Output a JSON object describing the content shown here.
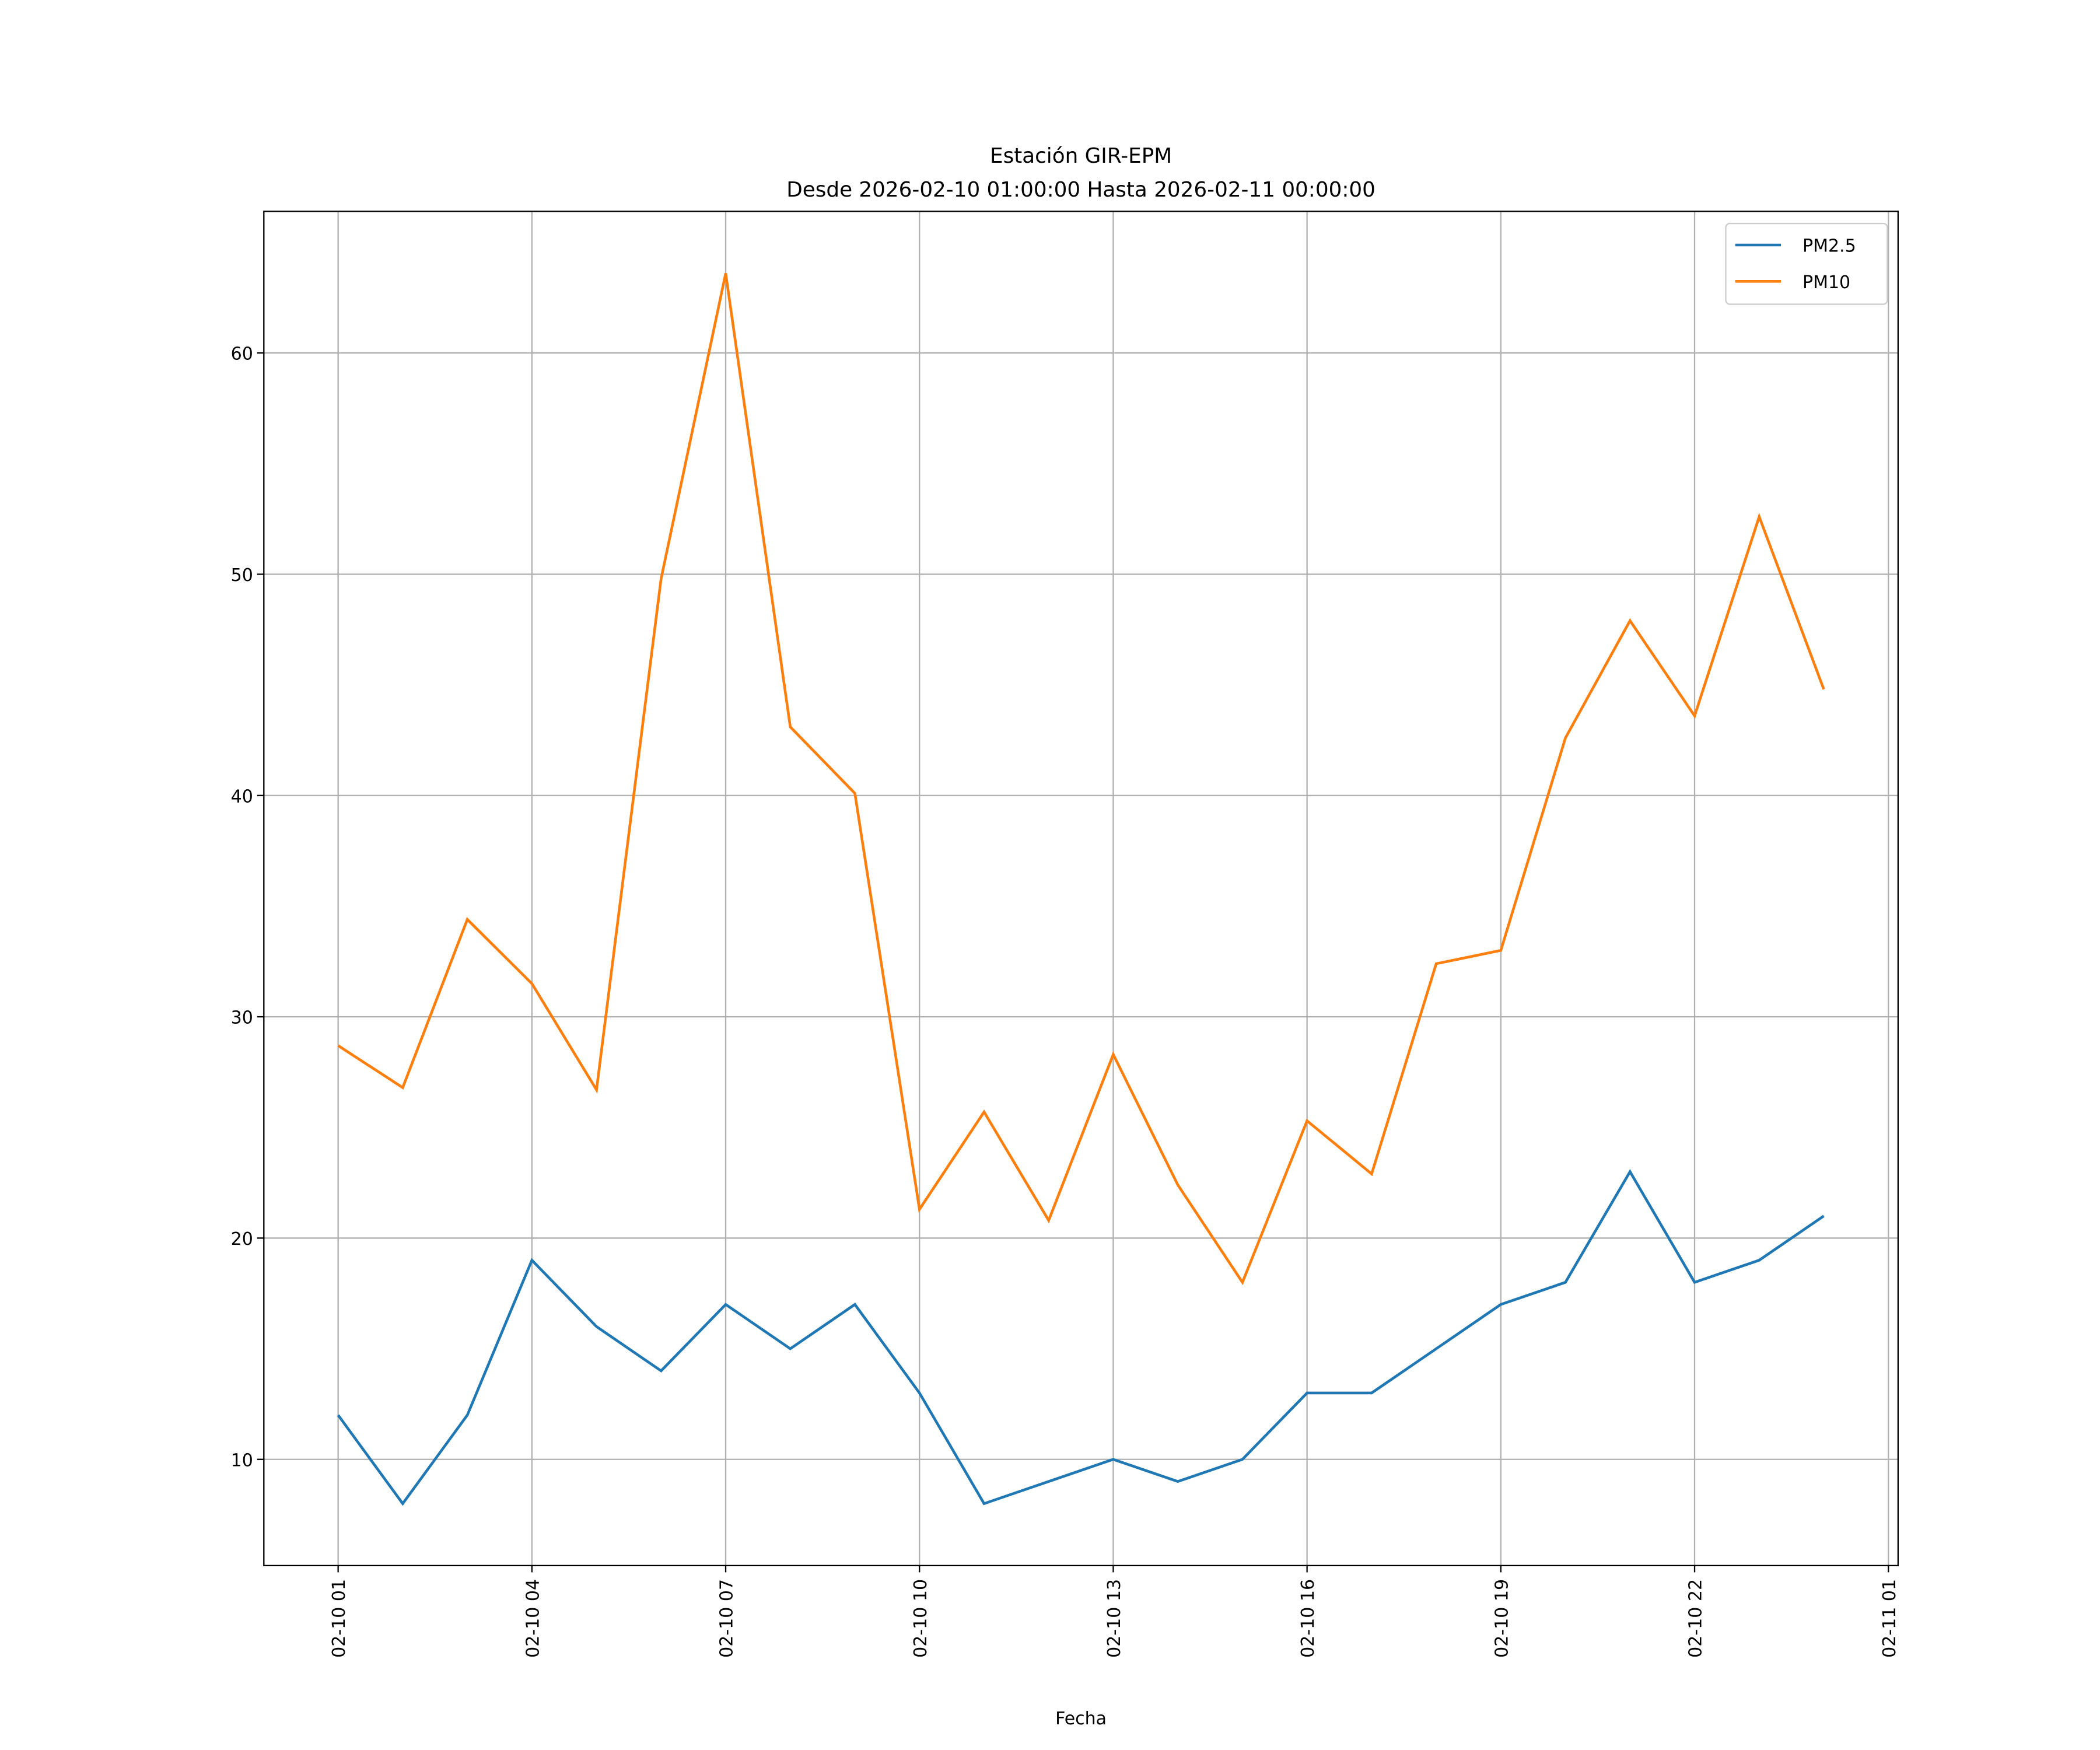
{
  "chart_data": {
    "type": "line",
    "title": "Estación GIR-EPM",
    "subtitle": "Desde 2026-02-10 01:00:00 Hasta 2026-02-11 00:00:00",
    "xlabel": "Fecha",
    "ylabel": "",
    "x_hours": [
      0,
      1,
      2,
      3,
      4,
      5,
      6,
      7,
      8,
      9,
      10,
      11,
      12,
      13,
      14,
      15,
      16,
      17,
      18,
      19,
      20,
      21,
      22,
      23
    ],
    "x_ticks": [
      {
        "hour": 0,
        "label": "02-10 01"
      },
      {
        "hour": 3,
        "label": "02-10 04"
      },
      {
        "hour": 6,
        "label": "02-10 07"
      },
      {
        "hour": 9,
        "label": "02-10 10"
      },
      {
        "hour": 12,
        "label": "02-10 13"
      },
      {
        "hour": 15,
        "label": "02-10 16"
      },
      {
        "hour": 18,
        "label": "02-10 19"
      },
      {
        "hour": 21,
        "label": "02-10 22"
      },
      {
        "hour": 24,
        "label": "02-11 01"
      }
    ],
    "y_ticks": [
      10,
      20,
      30,
      40,
      50,
      60
    ],
    "xlim": [
      -1.15,
      24.15
    ],
    "ylim": [
      5.2,
      66.4
    ],
    "grid": true,
    "legend_position": "top-right",
    "series": [
      {
        "name": "PM2.5",
        "color": "#1f77b4",
        "values": [
          12,
          8,
          12,
          19,
          16,
          14,
          17,
          15,
          17,
          13,
          8,
          9,
          10,
          9,
          10,
          13,
          13,
          15,
          17,
          18,
          23,
          18,
          19,
          21
        ]
      },
      {
        "name": "PM10",
        "color": "#ff7f0e",
        "values": [
          28.7,
          26.8,
          34.4,
          31.5,
          26.7,
          49.8,
          63.6,
          43.1,
          40.1,
          21.3,
          25.7,
          20.8,
          28.3,
          22.4,
          18.0,
          25.3,
          22.9,
          32.4,
          33.0,
          42.6,
          47.9,
          43.6,
          52.6,
          44.8
        ]
      }
    ]
  }
}
